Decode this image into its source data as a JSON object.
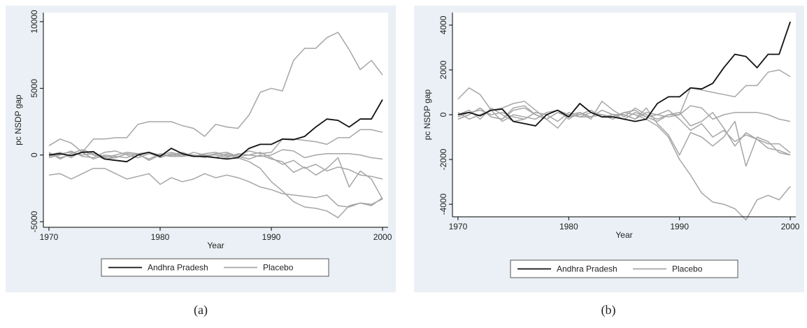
{
  "chart_data": [
    {
      "type": "line",
      "caption": "(a)",
      "ylabel": "pc NSDP gap",
      "xlabel": "Year",
      "x": [
        1970,
        1971,
        1972,
        1973,
        1974,
        1975,
        1976,
        1977,
        1978,
        1979,
        1980,
        1981,
        1982,
        1983,
        1984,
        1985,
        1986,
        1987,
        1988,
        1989,
        1990,
        1991,
        1992,
        1993,
        1994,
        1995,
        1996,
        1997,
        1998,
        1999,
        2000
      ],
      "xlim": [
        1969.5,
        2000.5
      ],
      "xticks": [
        1970,
        1980,
        1990,
        2000
      ],
      "ylim": [
        -5420,
        10680
      ],
      "yticks": [
        -5000,
        0,
        5000,
        10000
      ],
      "series": [
        {
          "name": "Andhra Pradesh",
          "color": "#111111",
          "values": [
            0,
            100,
            -50,
            200,
            250,
            -300,
            -400,
            -500,
            0,
            200,
            -100,
            500,
            100,
            -100,
            -100,
            -200,
            -300,
            -200,
            500,
            800,
            800,
            1200,
            1150,
            1400,
            2100,
            2700,
            2600,
            2100,
            2700,
            2700,
            4150
          ]
        },
        {
          "name": "Placebo",
          "color": "#a6a6a6",
          "lines": [
            {
              "values": [
                700,
                1200,
                900,
                200,
                1200,
                1200,
                1300,
                1300,
                2300,
                2500,
                2500,
                2500,
                2200,
                2000,
                1400,
                2300,
                2100,
                2000,
                3000,
                4700,
                5000,
                4800,
                7100,
                8000,
                8000,
                8800,
                9200,
                7900,
                6400,
                7100,
                6000
              ]
            },
            {
              "values": [
                -1500,
                -1400,
                -1800,
                -1400,
                -1000,
                -1000,
                -1400,
                -1800,
                -1600,
                -1400,
                -2200,
                -1700,
                -2000,
                -1800,
                -1400,
                -1700,
                -1500,
                -1700,
                -2000,
                -2400,
                -2600,
                -2900,
                -3000,
                -3100,
                -3200,
                -3000,
                -3800,
                -3900,
                -3600,
                -3700,
                -3300
              ]
            },
            {
              "values": [
                0,
                200,
                -200,
                300,
                0,
                -300,
                -200,
                100,
                0,
                -300,
                100,
                -100,
                -100,
                0,
                -200,
                100,
                0,
                -200,
                -500,
                -1000,
                -2000,
                -2700,
                -3500,
                -3900,
                -4000,
                -4200,
                -4700,
                -3800,
                -3600,
                -3800,
                -3200
              ]
            },
            {
              "values": [
                200,
                -300,
                100,
                400,
                100,
                -200,
                0,
                200,
                100,
                -400,
                0,
                200,
                0,
                -100,
                100,
                200,
                -100,
                0,
                300,
                100,
                200,
                1200,
                1200,
                1100,
                1000,
                800,
                1300,
                1300,
                1900,
                1900,
                1700
              ]
            },
            {
              "values": [
                -200,
                0,
                300,
                -100,
                -200,
                200,
                300,
                0,
                -200,
                100,
                -100,
                0,
                200,
                -100,
                0,
                0,
                -200,
                100,
                0,
                -100,
                0,
                400,
                300,
                -200,
                0,
                100,
                100,
                100,
                0,
                -200,
                -300
              ]
            },
            {
              "values": [
                100,
                -200,
                0,
                200,
                -300,
                0,
                -100,
                -200,
                100,
                200,
                -200,
                100,
                -100,
                200,
                0,
                -200,
                100,
                -100,
                0,
                200,
                -200,
                -700,
                -400,
                -1000,
                -700,
                -1200,
                -900,
                -1100,
                -1500,
                -1600,
                -1800
              ]
            },
            {
              "values": [
                -100,
                100,
                200,
                0,
                100,
                -100,
                -200,
                100,
                0,
                200,
                0,
                -100,
                100,
                0,
                -100,
                100,
                200,
                -100,
                -300,
                0,
                -300,
                -500,
                -1300,
                -900,
                -1500,
                -1000,
                -200,
                -2400,
                -1200,
                -1800,
                -3300
              ]
            }
          ]
        }
      ]
    },
    {
      "type": "line",
      "caption": "(b)",
      "ylabel": "pc NSDP gap",
      "xlabel": "Year",
      "x": [
        1970,
        1971,
        1972,
        1973,
        1974,
        1975,
        1976,
        1977,
        1978,
        1979,
        1980,
        1981,
        1982,
        1983,
        1984,
        1985,
        1986,
        1987,
        1988,
        1989,
        1990,
        1991,
        1992,
        1993,
        1994,
        1995,
        1996,
        1997,
        1998,
        1999,
        2000
      ],
      "xlim": [
        1969.5,
        2000.5
      ],
      "xticks": [
        1970,
        1980,
        1990,
        2000
      ],
      "ylim": [
        -4560,
        4560
      ],
      "yticks": [
        -4000,
        -2000,
        0,
        2000,
        4000
      ],
      "series": [
        {
          "name": "Andhra Pradesh",
          "color": "#111111",
          "values": [
            0,
            100,
            -50,
            200,
            250,
            -300,
            -400,
            -500,
            0,
            200,
            -100,
            500,
            100,
            -100,
            -100,
            -200,
            -300,
            -200,
            500,
            800,
            800,
            1200,
            1150,
            1400,
            2100,
            2700,
            2600,
            2100,
            2700,
            2700,
            4150
          ]
        },
        {
          "name": "Placebo",
          "color": "#a6a6a6",
          "lines": [
            {
              "values": [
                700,
                1200,
                900,
                200,
                300,
                500,
                600,
                200,
                -200,
                -600,
                0,
                100,
                -200,
                600,
                200,
                -100,
                300,
                0,
                -200,
                0,
                0,
                1200,
                1100,
                1000,
                900,
                800,
                1300,
                1300,
                1900,
                2000,
                1700
              ]
            },
            {
              "values": [
                -200,
                0,
                300,
                -100,
                -200,
                200,
                300,
                0,
                -200,
                100,
                -100,
                0,
                200,
                -100,
                0,
                0,
                -200,
                100,
                0,
                -100,
                0,
                400,
                300,
                -200,
                0,
                100,
                100,
                100,
                0,
                -200,
                -300
              ]
            },
            {
              "values": [
                100,
                -200,
                0,
                200,
                -300,
                0,
                -100,
                -200,
                100,
                200,
                -200,
                100,
                -100,
                200,
                0,
                -200,
                100,
                -100,
                0,
                200,
                -200,
                -700,
                -400,
                -1000,
                -700,
                -1200,
                -900,
                -1100,
                -1500,
                -1600,
                -1800
              ]
            },
            {
              "values": [
                0,
                200,
                -200,
                300,
                0,
                -300,
                -200,
                100,
                0,
                -300,
                100,
                -100,
                -100,
                0,
                -200,
                100,
                0,
                -200,
                -500,
                -1000,
                -2000,
                -2700,
                -3500,
                -3900,
                -4000,
                -4200,
                -4700,
                -3800,
                -3600,
                -3800,
                -3200
              ]
            },
            {
              "values": [
                -200,
                0,
                300,
                -100,
                -200,
                300,
                400,
                0,
                -200,
                100,
                -100,
                0,
                200,
                -100,
                0,
                0,
                -200,
                300,
                -400,
                -900,
                -1800,
                -800,
                -1000,
                -1400,
                -1000,
                -300,
                -2300,
                -1000,
                -1200,
                -1700,
                -1800
              ]
            },
            {
              "values": [
                -100,
                100,
                200,
                0,
                100,
                -100,
                -200,
                100,
                0,
                200,
                0,
                -100,
                100,
                0,
                -100,
                100,
                200,
                -100,
                -300,
                0,
                100,
                -500,
                -300,
                100,
                -600,
                -1400,
                -800,
                -1100,
                -1300,
                -1300,
                -1700
              ]
            }
          ]
        }
      ]
    }
  ]
}
